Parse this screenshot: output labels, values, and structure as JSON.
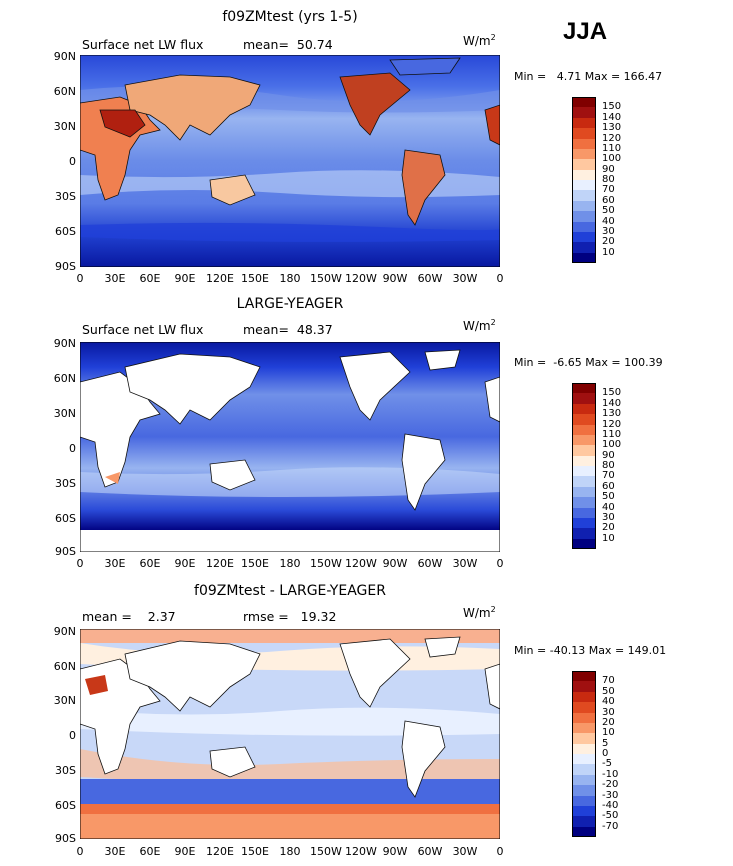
{
  "season": "JJA",
  "panels": [
    {
      "title": "f09ZMtest (yrs 1-5)",
      "subtitle_left": "Surface net LW flux",
      "subtitle_mid": "mean=  50.74",
      "units": "W/m",
      "units_sup": "2",
      "min_text": "Min =   4.71",
      "max_text": "Max = 166.47",
      "colorbar": {
        "labels": [
          "150",
          "140",
          "130",
          "120",
          "110",
          "100",
          "90",
          "80",
          "70",
          "60",
          "50",
          "40",
          "30",
          "20",
          "10"
        ],
        "colors": [
          "#800000",
          "#a01010",
          "#c82a10",
          "#e04a20",
          "#f07040",
          "#f89868",
          "#ffc8a0",
          "#fff0e0",
          "#e8f0ff",
          "#c0d4f8",
          "#98b4f0",
          "#7090e8",
          "#4868e0",
          "#2040d8",
          "#1020b0",
          "#000080"
        ]
      },
      "style": "model"
    },
    {
      "title": "LARGE-YEAGER",
      "subtitle_left": "Surface net LW flux",
      "subtitle_mid": "mean=  48.37",
      "units": "W/m",
      "units_sup": "2",
      "min_text": "Min =  -6.65",
      "max_text": "Max = 100.39",
      "colorbar": {
        "labels": [
          "150",
          "140",
          "130",
          "120",
          "110",
          "100",
          "90",
          "80",
          "70",
          "60",
          "50",
          "40",
          "30",
          "20",
          "10"
        ],
        "colors": [
          "#800000",
          "#a01010",
          "#c82a10",
          "#e04a20",
          "#f07040",
          "#f89868",
          "#ffc8a0",
          "#fff0e0",
          "#e8f0ff",
          "#c0d4f8",
          "#98b4f0",
          "#7090e8",
          "#4868e0",
          "#2040d8",
          "#1020b0",
          "#000080"
        ]
      },
      "style": "obs"
    },
    {
      "title": "f09ZMtest - LARGE-YEAGER",
      "subtitle_left": "mean =    2.37",
      "subtitle_mid": "rmse =   19.32",
      "units": "W/m",
      "units_sup": "2",
      "min_text": "Min = -40.13",
      "max_text": "Max = 149.01",
      "colorbar": {
        "labels": [
          "70",
          "50",
          "40",
          "30",
          "20",
          "10",
          "5",
          "0",
          "-5",
          "-10",
          "-20",
          "-30",
          "-40",
          "-50",
          "-70"
        ],
        "colors": [
          "#800000",
          "#a01010",
          "#c82a10",
          "#e04a20",
          "#f07040",
          "#f89868",
          "#ffc8a0",
          "#fff0e0",
          "#e8f0ff",
          "#c0d4f8",
          "#98b4f0",
          "#7090e8",
          "#4868e0",
          "#2040d8",
          "#1020b0",
          "#000080"
        ]
      },
      "style": "diff"
    }
  ],
  "lat_ticks": [
    "90N",
    "60N",
    "30N",
    "0",
    "30S",
    "60S",
    "90S"
  ],
  "lon_ticks": [
    "0",
    "30E",
    "60E",
    "90E",
    "120E",
    "150E",
    "180",
    "150W",
    "120W",
    "90W",
    "60W",
    "30W",
    "0"
  ]
}
